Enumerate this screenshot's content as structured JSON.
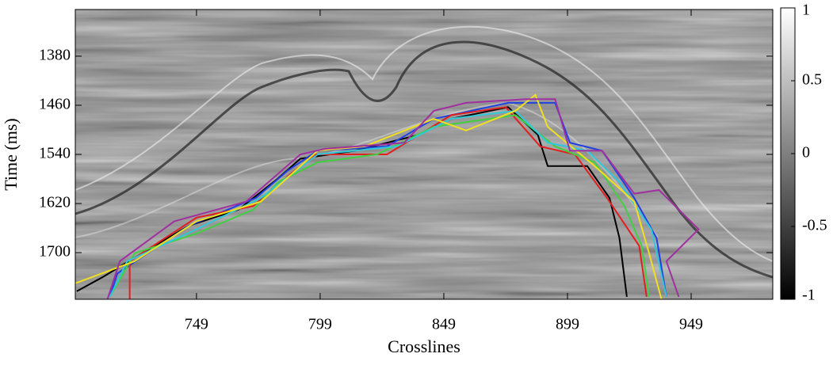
{
  "chart_data": {
    "type": "line",
    "xlabel": "Crosslines",
    "ylabel": "Time (ms)",
    "xlim": [
      700,
      982
    ],
    "xticks": [
      749,
      799,
      849,
      899,
      949
    ],
    "ylim": [
      1304,
      1776
    ],
    "yticks": [
      1380,
      1460,
      1540,
      1620,
      1700
    ],
    "yreverse": true,
    "clim": [
      -1,
      1
    ],
    "cticks": [
      1,
      0.5,
      0,
      -0.5,
      -1
    ],
    "series": [
      {
        "color": "#000000",
        "x": [
          700.6,
          711,
          727,
          746,
          766,
          782,
          791,
          813,
          839,
          852,
          875,
          887,
          891,
          907,
          916,
          920,
          923
        ],
        "values": [
          1763,
          1740,
          1701,
          1656,
          1630,
          1579,
          1547,
          1534,
          1508,
          1482,
          1463,
          1508,
          1559,
          1559,
          1611,
          1676,
          1772
        ]
      },
      {
        "color": "#2040e0",
        "x": [
          714,
          717,
          746,
          773,
          786,
          798,
          826,
          845,
          875,
          894,
          900,
          913,
          926,
          935,
          939
        ],
        "values": [
          1772,
          1734,
          1656,
          1611,
          1566,
          1534,
          1527,
          1482,
          1456,
          1456,
          1521,
          1534,
          1611,
          1676,
          1772
        ]
      },
      {
        "color": "#e02020",
        "x": [
          722,
          722,
          749,
          772,
          787,
          797,
          826,
          852,
          874,
          888,
          902,
          915,
          928,
          931
        ],
        "values": [
          1776,
          1714,
          1643,
          1624,
          1572,
          1540,
          1540,
          1476,
          1463,
          1527,
          1540,
          1611,
          1689,
          1772
        ]
      },
      {
        "color": "#40d040",
        "x": [
          714,
          724,
          749,
          772,
          782,
          798,
          822,
          845,
          878,
          894,
          910,
          922,
          929,
          932
        ],
        "values": [
          1772,
          1701,
          1669,
          1630,
          1585,
          1553,
          1540,
          1495,
          1476,
          1527,
          1553,
          1624,
          1689,
          1772
        ]
      },
      {
        "color": "#30c8d8",
        "x": [
          714,
          721,
          749,
          775,
          798,
          830,
          852,
          878,
          891,
          907,
          920,
          933,
          939
        ],
        "values": [
          1772,
          1714,
          1662,
          1611,
          1540,
          1527,
          1482,
          1469,
          1521,
          1534,
          1585,
          1663,
          1772
        ]
      },
      {
        "color": "#f0e020",
        "x": [
          700,
          724,
          749,
          775,
          798,
          817,
          845,
          858,
          878,
          886,
          891,
          910,
          926,
          932,
          937
        ],
        "values": [
          1750,
          1714,
          1649,
          1617,
          1534,
          1527,
          1482,
          1501,
          1469,
          1443,
          1495,
          1559,
          1617,
          1701,
          1776
        ]
      },
      {
        "color": "#a030a0",
        "x": [
          713,
          718,
          740,
          769,
          791,
          801,
          833,
          845,
          858,
          882,
          894,
          900,
          913,
          926,
          936,
          952,
          939,
          944
        ],
        "values": [
          1776,
          1714,
          1649,
          1617,
          1540,
          1531,
          1521,
          1469,
          1456,
          1450,
          1450,
          1534,
          1534,
          1604,
          1598,
          1662,
          1714,
          1772
        ]
      }
    ]
  }
}
